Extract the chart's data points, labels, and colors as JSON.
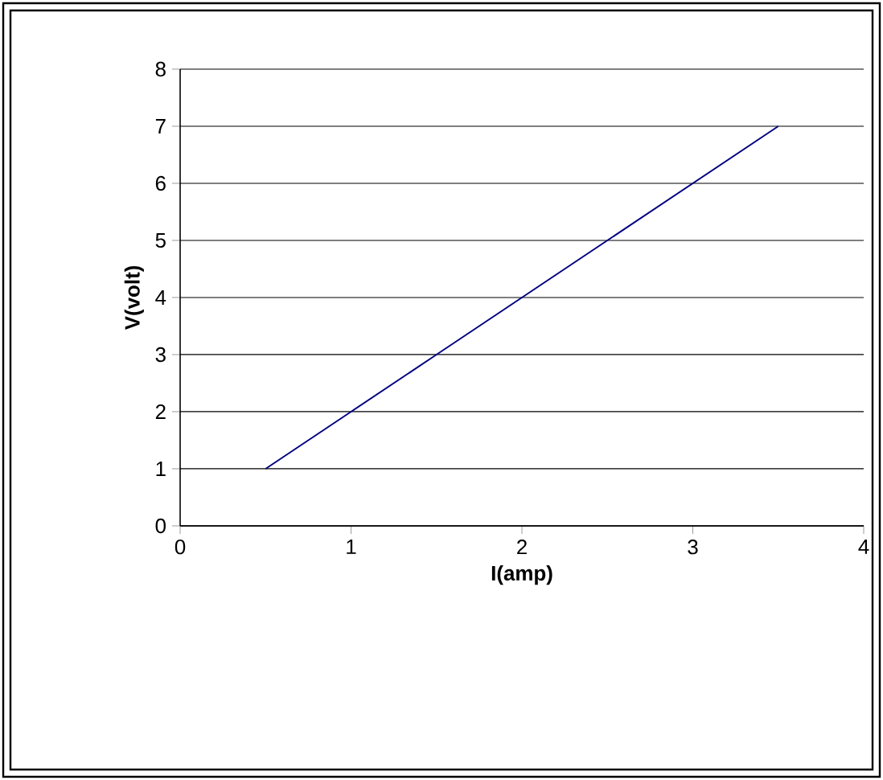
{
  "chart_data": {
    "type": "line",
    "xlabel": "I(amp)",
    "ylabel": "V(volt)",
    "x": [
      0.5,
      1,
      1.5,
      2,
      2.5,
      3,
      3.5
    ],
    "series": [
      {
        "color": "#000080",
        "values": [
          1,
          2,
          3,
          4,
          5,
          6,
          7
        ]
      }
    ],
    "xlim": [
      0,
      4
    ],
    "ylim": [
      0,
      8
    ],
    "xticks": [
      0,
      1,
      2,
      3,
      4
    ],
    "yticks": [
      0,
      1,
      2,
      3,
      4,
      5,
      6,
      7,
      8
    ],
    "grid": "y",
    "marker": "none",
    "line_style": "solid"
  }
}
